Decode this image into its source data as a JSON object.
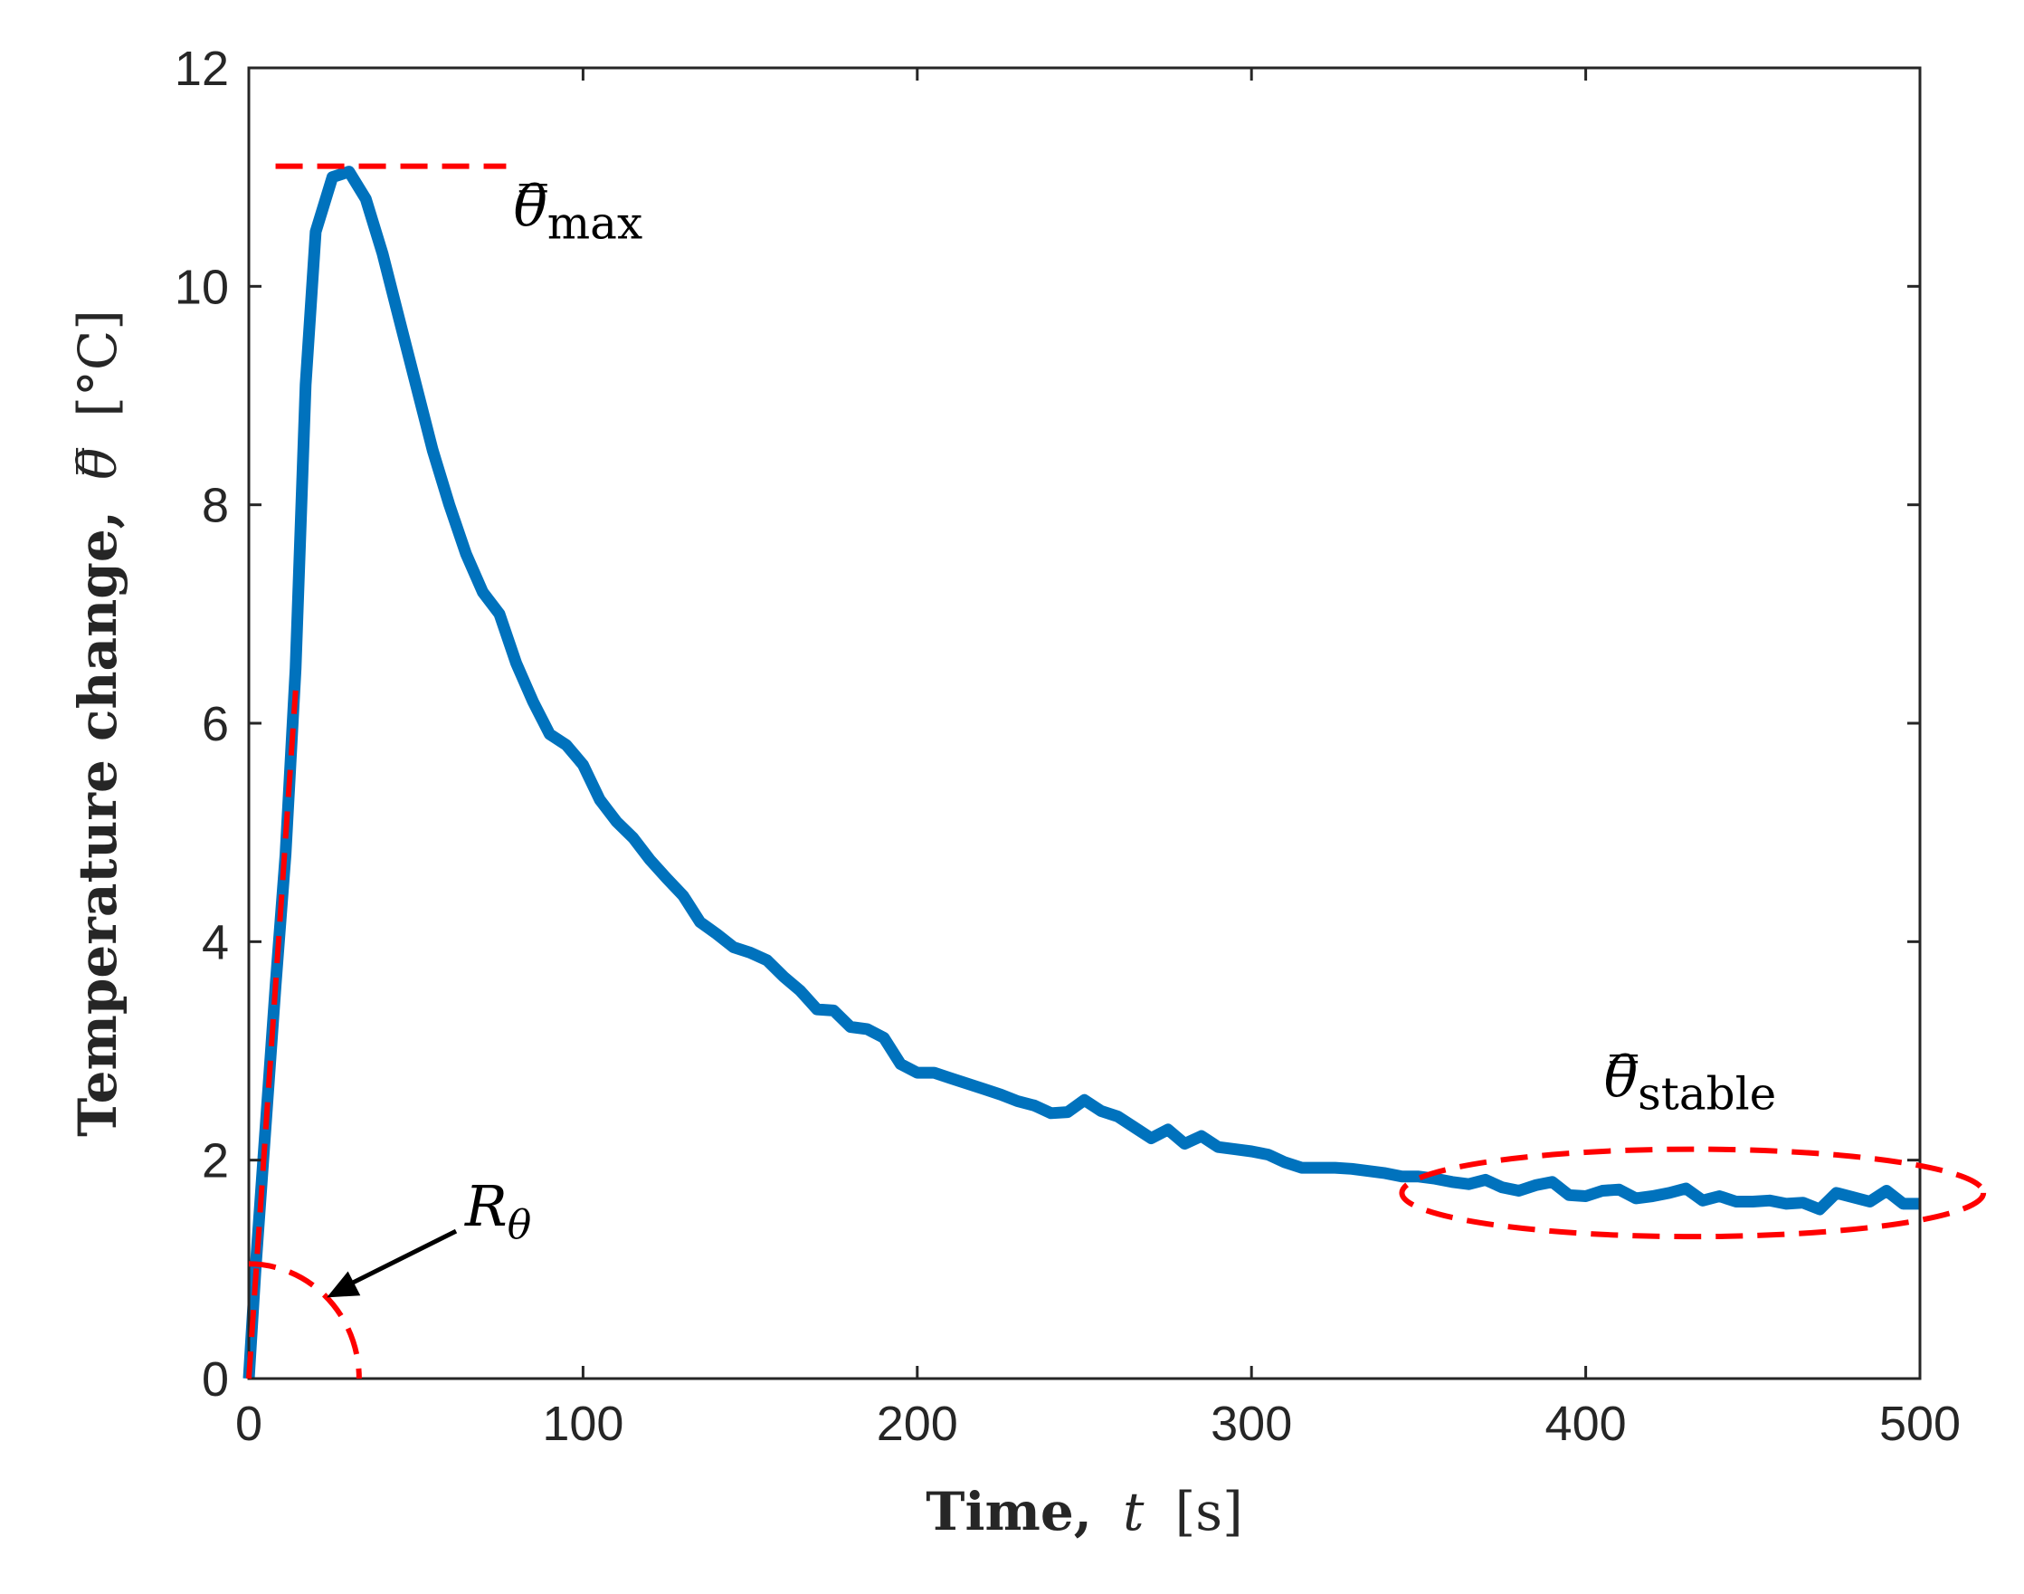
{
  "chart_data": {
    "type": "line",
    "title": "",
    "xlabel": "Time,",
    "xlabel_var": "t",
    "xlabel_unit": "[s]",
    "ylabel": "Temperature change,",
    "ylabel_var": "θ̿",
    "ylabel_unit": "[°C]",
    "xlim": [
      0,
      500
    ],
    "ylim": [
      0,
      12
    ],
    "xticks": [
      0,
      100,
      200,
      300,
      400,
      500
    ],
    "yticks": [
      0,
      2,
      4,
      6,
      8,
      10,
      12
    ],
    "grid": false,
    "colors": {
      "series": "#0072BD",
      "annotation": "#FF0000",
      "axes": "#262626"
    },
    "series": [
      {
        "name": "Temperature change",
        "x": [
          0,
          2,
          5,
          8,
          11,
          14,
          17,
          20,
          25,
          30,
          35,
          40,
          45,
          50,
          55,
          60,
          65,
          70,
          75,
          80,
          85,
          90,
          95,
          100,
          105,
          110,
          115,
          120,
          125,
          130,
          135,
          140,
          145,
          150,
          155,
          160,
          165,
          170,
          175,
          180,
          185,
          190,
          195,
          200,
          205,
          210,
          215,
          220,
          225,
          230,
          235,
          240,
          245,
          250,
          255,
          260,
          265,
          270,
          275,
          280,
          285,
          290,
          295,
          300,
          305,
          310,
          315,
          320,
          325,
          330,
          335,
          340,
          345,
          350,
          355,
          360,
          365,
          370,
          375,
          380,
          385,
          390,
          395,
          400,
          405,
          410,
          415,
          420,
          425,
          430,
          435,
          440,
          445,
          450,
          455,
          460,
          465,
          470,
          475,
          480,
          485,
          490,
          495,
          500
        ],
        "y": [
          0,
          1.0,
          2.3,
          3.6,
          4.8,
          6.5,
          9.1,
          10.5,
          11.0,
          11.05,
          10.8,
          10.3,
          9.7,
          9.1,
          8.5,
          8.0,
          7.55,
          7.2,
          7.0,
          6.55,
          6.2,
          5.9,
          5.8,
          5.62,
          5.3,
          5.1,
          4.95,
          4.75,
          4.58,
          4.42,
          4.18,
          4.07,
          3.95,
          3.9,
          3.83,
          3.68,
          3.55,
          3.38,
          3.37,
          3.22,
          3.2,
          3.12,
          2.88,
          2.8,
          2.8,
          2.75,
          2.7,
          2.65,
          2.6,
          2.54,
          2.5,
          2.43,
          2.44,
          2.55,
          2.45,
          2.4,
          2.3,
          2.2,
          2.28,
          2.15,
          2.22,
          2.12,
          2.1,
          2.08,
          2.05,
          1.98,
          1.93,
          1.93,
          1.93,
          1.92,
          1.9,
          1.88,
          1.85,
          1.85,
          1.83,
          1.8,
          1.78,
          1.82,
          1.75,
          1.72,
          1.77,
          1.8,
          1.68,
          1.67,
          1.72,
          1.73,
          1.65,
          1.67,
          1.7,
          1.74,
          1.63,
          1.67,
          1.62,
          1.62,
          1.63,
          1.6,
          1.61,
          1.55,
          1.7,
          1.66,
          1.62,
          1.72,
          1.6,
          1.6
        ]
      }
    ],
    "annotations": {
      "max_label": "θ̿",
      "max_sub": "max",
      "max_value": 11.1,
      "max_line_x": [
        8,
        77
      ],
      "stable_label": "θ̿",
      "stable_sub": "stable",
      "stable_ellipse_center": [
        432,
        1.7
      ],
      "stable_ellipse_semi_axes": [
        87,
        0.4
      ],
      "slope_line_x": [
        0,
        14
      ],
      "slope_line_y": [
        0,
        6.3
      ],
      "r_label": "R",
      "r_sub": "θ",
      "r_arc_center": [
        0,
        0
      ],
      "r_arc_radius_x": 33,
      "r_arc_radius_y": 1.05
    }
  }
}
